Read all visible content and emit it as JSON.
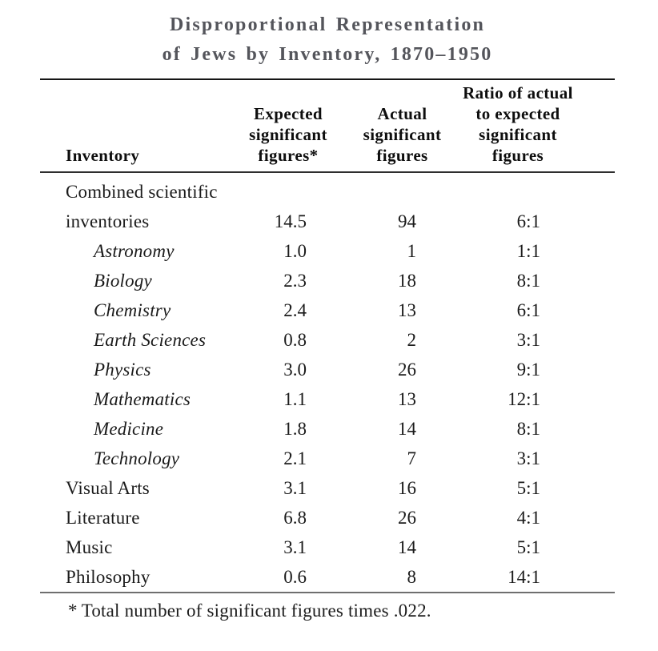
{
  "title": {
    "line1": "Disproportional Representation",
    "line2": "of Jews by Inventory, 1870–1950"
  },
  "table": {
    "header": {
      "col1": "Inventory",
      "col2_lines": [
        "Expected",
        "significant",
        "figures*"
      ],
      "col3_lines": [
        "Actual",
        "significant",
        "figures"
      ],
      "col4_lines": [
        "Ratio of actual",
        "to expected",
        "significant",
        "figures"
      ]
    },
    "rows": [
      {
        "label_lines": [
          "Combined scientific",
          "inventories"
        ],
        "indent": false,
        "expected": "14.5",
        "actual": "94",
        "ratio": "6:1"
      },
      {
        "label_lines": [
          "Astronomy"
        ],
        "indent": true,
        "expected": "1.0",
        "actual": "1",
        "ratio": "1:1"
      },
      {
        "label_lines": [
          "Biology"
        ],
        "indent": true,
        "expected": "2.3",
        "actual": "18",
        "ratio": "8:1"
      },
      {
        "label_lines": [
          "Chemistry"
        ],
        "indent": true,
        "expected": "2.4",
        "actual": "13",
        "ratio": "6:1"
      },
      {
        "label_lines": [
          "Earth Sciences"
        ],
        "indent": true,
        "expected": "0.8",
        "actual": "2",
        "ratio": "3:1"
      },
      {
        "label_lines": [
          "Physics"
        ],
        "indent": true,
        "expected": "3.0",
        "actual": "26",
        "ratio": "9:1"
      },
      {
        "label_lines": [
          "Mathematics"
        ],
        "indent": true,
        "expected": "1.1",
        "actual": "13",
        "ratio": "12:1"
      },
      {
        "label_lines": [
          "Medicine"
        ],
        "indent": true,
        "expected": "1.8",
        "actual": "14",
        "ratio": "8:1"
      },
      {
        "label_lines": [
          "Technology"
        ],
        "indent": true,
        "expected": "2.1",
        "actual": "7",
        "ratio": "3:1"
      },
      {
        "label_lines": [
          "Visual Arts"
        ],
        "indent": false,
        "expected": "3.1",
        "actual": "16",
        "ratio": "5:1"
      },
      {
        "label_lines": [
          "Literature"
        ],
        "indent": false,
        "expected": "6.8",
        "actual": "26",
        "ratio": "4:1"
      },
      {
        "label_lines": [
          "Music"
        ],
        "indent": false,
        "expected": "3.1",
        "actual": "14",
        "ratio": "5:1"
      },
      {
        "label_lines": [
          "Philosophy"
        ],
        "indent": false,
        "expected": "0.6",
        "actual": "8",
        "ratio": "14:1"
      }
    ]
  },
  "footnote": {
    "marker": "*",
    "text": "Total number of significant figures times .022."
  },
  "colors": {
    "title": "#54555b",
    "body_text": "#1b1b1b",
    "top_rule": "#151515",
    "bottom_rule": "#6f6f6f"
  }
}
